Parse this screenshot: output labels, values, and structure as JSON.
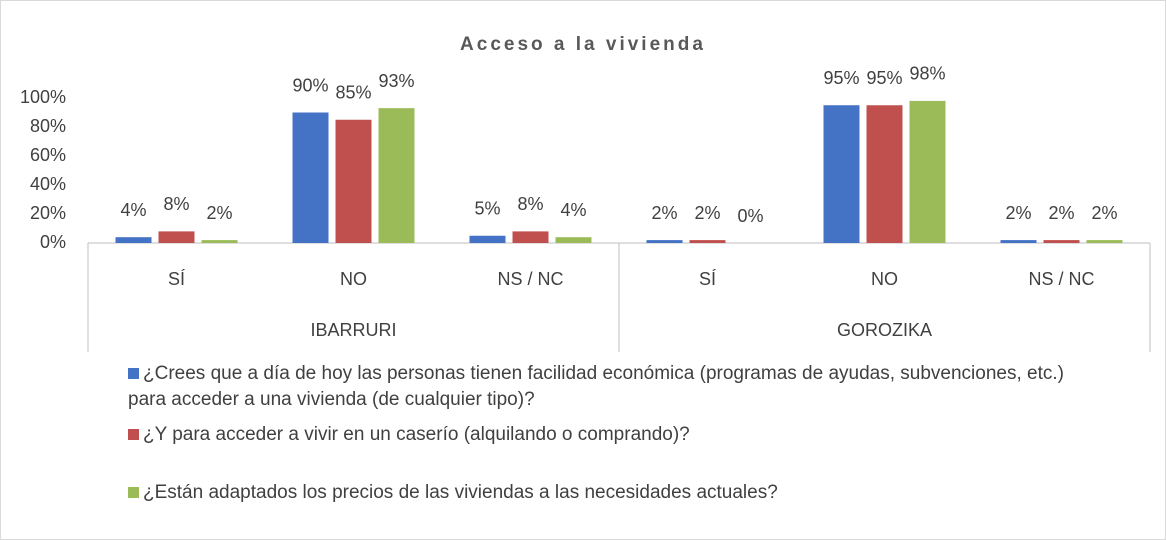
{
  "chart_data": {
    "type": "bar",
    "title": "Acceso a la vivienda",
    "categories": [
      "SÍ",
      "NO",
      "NS / NC",
      "SÍ",
      "NO",
      "NS / NC"
    ],
    "groups": [
      "IBARRURI",
      "GOROZIKA"
    ],
    "series": [
      {
        "name": "¿Crees que a día de hoy las personas tienen facilidad económica (programas de ayudas, subvenciones, etc.) para acceder a una vivienda (de cualquier tipo)?",
        "color": "#4472c4",
        "values": [
          4,
          90,
          5,
          2,
          95,
          2
        ],
        "value_labels": [
          "4%",
          "90%",
          "5%",
          "2%",
          "95%",
          "2%"
        ]
      },
      {
        "name": "¿Y para acceder a vivir en un caserío (alquilando o comprando)?",
        "color": "#c0504d",
        "values": [
          8,
          85,
          8,
          2,
          95,
          2
        ],
        "value_labels": [
          "8%",
          "85%",
          "8%",
          "2%",
          "95%",
          "2%"
        ]
      },
      {
        "name": "¿Están adaptados los precios de las viviendas a las necesidades actuales?",
        "color": "#9bbb59",
        "values": [
          2,
          93,
          4,
          0,
          98,
          2
        ],
        "value_labels": [
          "2%",
          "93%",
          "4%",
          "0%",
          "98%",
          "2%"
        ]
      }
    ],
    "ylim": [
      0,
      100
    ],
    "yticks": [
      {
        "value": 0,
        "label": "0%"
      },
      {
        "value": 20,
        "label": "20%"
      },
      {
        "value": 40,
        "label": "40%"
      },
      {
        "value": 60,
        "label": "60%"
      },
      {
        "value": 80,
        "label": "80%"
      },
      {
        "value": 100,
        "label": "100%"
      }
    ]
  }
}
